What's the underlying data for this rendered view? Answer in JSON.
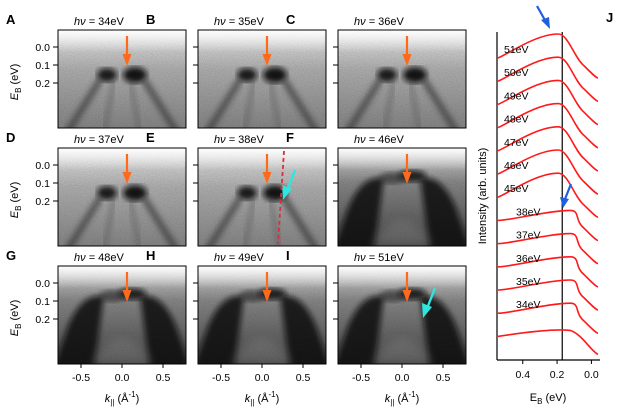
{
  "panels": [
    {
      "id": "A",
      "label": "A",
      "energy": "34eV",
      "cyan": false
    },
    {
      "id": "B",
      "label": "B",
      "energy": "35eV",
      "cyan": false
    },
    {
      "id": "C",
      "label": "C",
      "energy": "36eV",
      "cyan": false
    },
    {
      "id": "D",
      "label": "D",
      "energy": "37eV",
      "cyan": false
    },
    {
      "id": "E",
      "label": "E",
      "energy": "38eV",
      "cyan": true
    },
    {
      "id": "F",
      "label": "F",
      "energy": "46eV",
      "cyan": false
    },
    {
      "id": "G",
      "label": "G",
      "energy": "48eV",
      "cyan": false
    },
    {
      "id": "H",
      "label": "H",
      "energy": "49eV",
      "cyan": false
    },
    {
      "id": "I",
      "label": "I",
      "energy": "51eV",
      "cyan": true
    }
  ],
  "hv_prefix": "hν = ",
  "y_axis": {
    "label": "E",
    "sub": "B",
    "unit": " (eV)",
    "ticks": [
      "0.0",
      "0.1",
      "0.2"
    ],
    "tick_values": [
      0.0,
      0.1,
      0.2
    ]
  },
  "x_axis": {
    "label": "k",
    "sub": "||",
    "unit": " (Å",
    "sup": "-1",
    "close": ")",
    "ticks": [
      "-0.5",
      "0.0",
      "0.5"
    ],
    "tick_values": [
      -0.5,
      0.0,
      0.5
    ]
  },
  "panel_J": {
    "label": "J",
    "y_label": "Intensity (arb. units)",
    "x_label": "E",
    "x_label_sub": "B",
    "x_label_unit": " (eV)",
    "x_ticks": [
      "0.4",
      "0.2",
      "0.0"
    ],
    "x_tick_values": [
      0.4,
      0.2,
      0.0
    ],
    "x_range": [
      0.55,
      -0.05
    ],
    "vertical_line_at": 0.17,
    "curves": [
      "51eV",
      "50eV",
      "49eV",
      "48eV",
      "47eV",
      "46eV",
      "45eV",
      "38eV",
      "37eV",
      "36eV",
      "35eV",
      "34eV"
    ]
  },
  "colors": {
    "orange": "#ff6a1a",
    "cyan": "#2ee6e0",
    "red": "#ff1a1a",
    "blue": "#1f5fe0",
    "dashed": "#d43040"
  }
}
